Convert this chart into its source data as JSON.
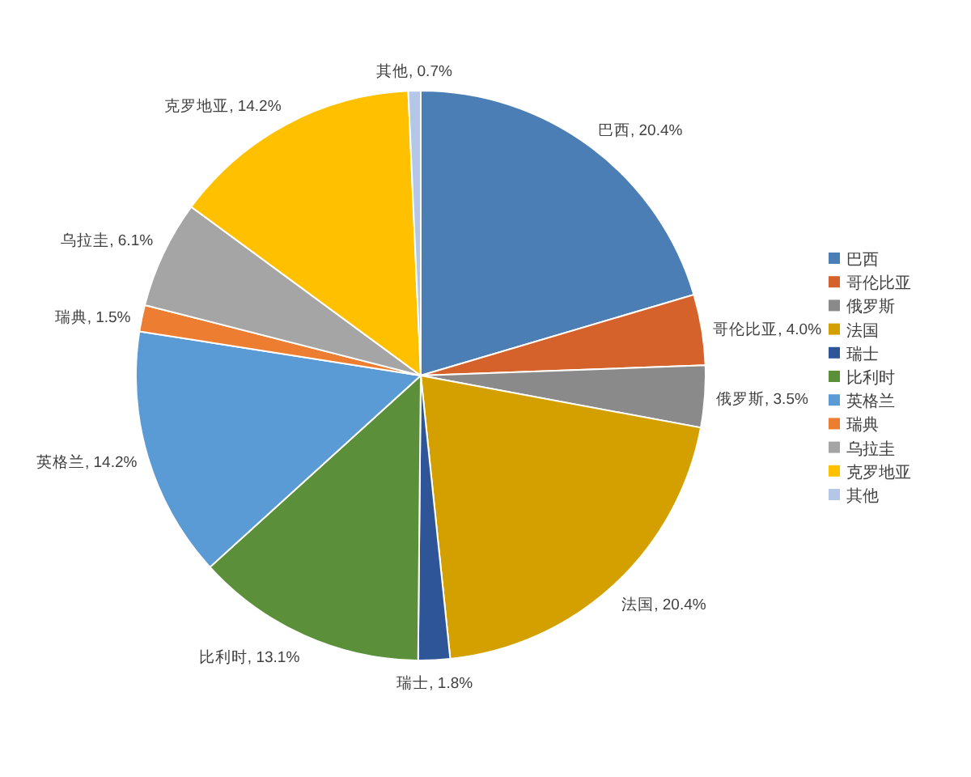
{
  "chart_data": {
    "type": "pie",
    "categories": [
      "巴西",
      "哥伦比亚",
      "俄罗斯",
      "法国",
      "瑞士",
      "比利时",
      "英格兰",
      "瑞典",
      "乌拉圭",
      "克罗地亚",
      "其他"
    ],
    "values": [
      20.4,
      4.0,
      3.5,
      20.4,
      1.8,
      13.1,
      14.2,
      1.5,
      6.1,
      14.2,
      0.7
    ],
    "colors": [
      "#4a7eb4",
      "#d5622b",
      "#8a8a8a",
      "#d4a000",
      "#2e5597",
      "#5b8f3a",
      "#5b9bd5",
      "#ed7d31",
      "#a5a5a5",
      "#ffc000",
      "#b4c7e7"
    ],
    "value_labels": [
      ", 20.4%",
      ", 4.0%",
      ", 3.5%",
      ", 20.4%",
      ", 1.8%",
      ", 13.1%",
      ", 14.2%",
      ", 1.5%",
      ", 6.1%",
      ", 14.2%",
      ", 0.7%"
    ],
    "legend": "right"
  }
}
